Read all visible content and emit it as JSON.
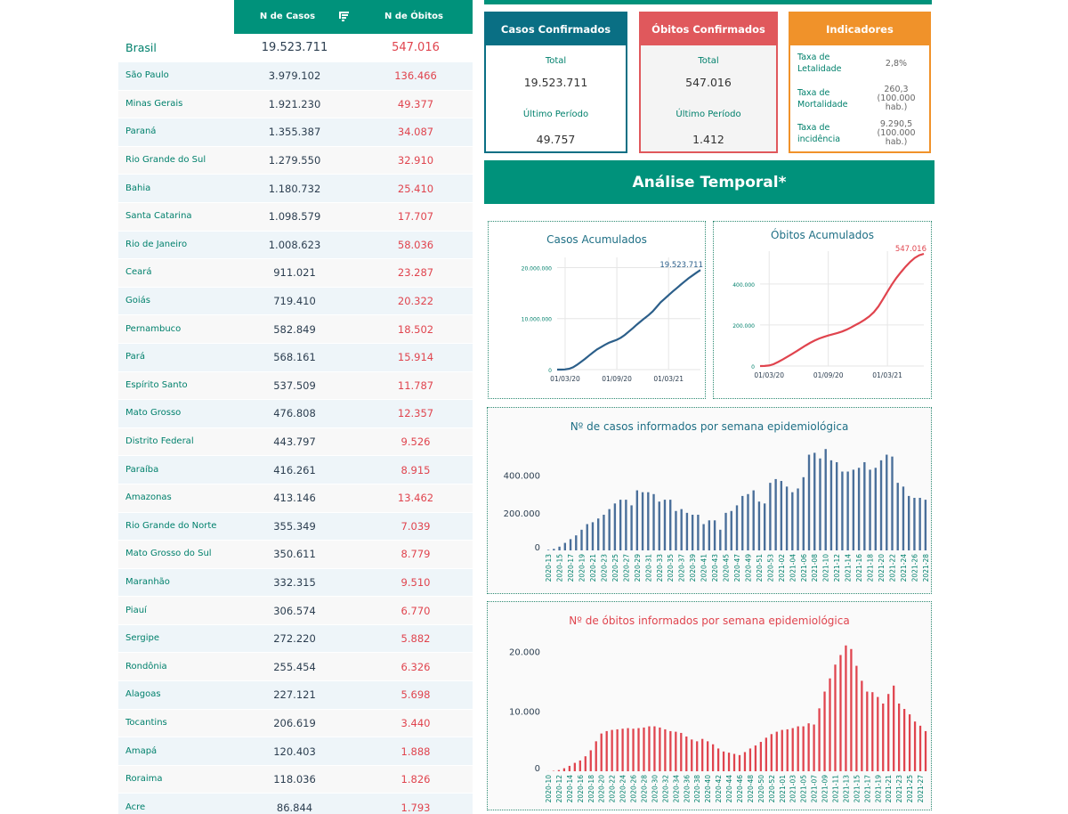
{
  "table": {
    "header_cases": "N de Casos",
    "header_deaths": "N de Óbitos",
    "rows": [
      {
        "state": "Brasil",
        "cases": "19.523.711",
        "deaths": "547.016"
      },
      {
        "state": "São Paulo",
        "cases": "3.979.102",
        "deaths": "136.466"
      },
      {
        "state": "Minas Gerais",
        "cases": "1.921.230",
        "deaths": "49.377"
      },
      {
        "state": "Paraná",
        "cases": "1.355.387",
        "deaths": "34.087"
      },
      {
        "state": "Rio Grande do Sul",
        "cases": "1.279.550",
        "deaths": "32.910"
      },
      {
        "state": "Bahia",
        "cases": "1.180.732",
        "deaths": "25.410"
      },
      {
        "state": "Santa Catarina",
        "cases": "1.098.579",
        "deaths": "17.707"
      },
      {
        "state": "Rio de Janeiro",
        "cases": "1.008.623",
        "deaths": "58.036"
      },
      {
        "state": "Ceará",
        "cases": "911.021",
        "deaths": "23.287"
      },
      {
        "state": "Goiás",
        "cases": "719.410",
        "deaths": "20.322"
      },
      {
        "state": "Pernambuco",
        "cases": "582.849",
        "deaths": "18.502"
      },
      {
        "state": "Pará",
        "cases": "568.161",
        "deaths": "15.914"
      },
      {
        "state": "Espírito Santo",
        "cases": "537.509",
        "deaths": "11.787"
      },
      {
        "state": "Mato Grosso",
        "cases": "476.808",
        "deaths": "12.357"
      },
      {
        "state": "Distrito Federal",
        "cases": "443.797",
        "deaths": "9.526"
      },
      {
        "state": "Paraíba",
        "cases": "416.261",
        "deaths": "8.915"
      },
      {
        "state": "Amazonas",
        "cases": "413.146",
        "deaths": "13.462"
      },
      {
        "state": "Rio Grande do Norte",
        "cases": "355.349",
        "deaths": "7.039"
      },
      {
        "state": "Mato Grosso do Sul",
        "cases": "350.611",
        "deaths": "8.779"
      },
      {
        "state": "Maranhão",
        "cases": "332.315",
        "deaths": "9.510"
      },
      {
        "state": "Piauí",
        "cases": "306.574",
        "deaths": "6.770"
      },
      {
        "state": "Sergipe",
        "cases": "272.220",
        "deaths": "5.882"
      },
      {
        "state": "Rondônia",
        "cases": "255.454",
        "deaths": "6.326"
      },
      {
        "state": "Alagoas",
        "cases": "227.121",
        "deaths": "5.698"
      },
      {
        "state": "Tocantins",
        "cases": "206.619",
        "deaths": "3.440"
      },
      {
        "state": "Amapá",
        "cases": "120.403",
        "deaths": "1.888"
      },
      {
        "state": "Roraima",
        "cases": "118.036",
        "deaths": "1.826"
      },
      {
        "state": "Acre",
        "cases": "86.844",
        "deaths": "1.793"
      }
    ]
  },
  "cards": {
    "confirmed": {
      "title": "Casos Confirmados",
      "total_label": "Total",
      "total": "19.523.711",
      "period_label": "Último Período",
      "period": "49.757"
    },
    "deaths": {
      "title": "Óbitos Confirmados",
      "total_label": "Total",
      "total": "547.016",
      "period_label": "Último Período",
      "period": "1.412"
    },
    "indicators": {
      "title": "Indicadores",
      "items": [
        {
          "label": "Taxa de Letalidade",
          "value": "2,8%"
        },
        {
          "label": "Taxa de Mortalidade",
          "value": "260,3 (100.000 hab.)"
        },
        {
          "label": "Taxa de incidência",
          "value": "9.290,5 (100.000 hab.)"
        }
      ]
    }
  },
  "banner": "Análise Temporal*",
  "colors": {
    "primary": "#00927b",
    "cases": "#2c5f8a",
    "deaths": "#e0444e",
    "indicators": "#f0922a"
  },
  "chart_data": [
    {
      "type": "line",
      "title": "Casos Acumulados",
      "x_ticks": [
        "01/03/20",
        "01/09/20",
        "01/03/21"
      ],
      "y_ticks": [
        "0",
        "10.000.000",
        "20.000.000"
      ],
      "ylim": [
        0,
        22000000
      ],
      "annotation": "19.523.711",
      "x": [
        0,
        2,
        4,
        6,
        8,
        10,
        12,
        14,
        16,
        18,
        20,
        22,
        24,
        26,
        28,
        30,
        32,
        34,
        36,
        38,
        40,
        42,
        44,
        46,
        48,
        50,
        52,
        54,
        56,
        58,
        60,
        62,
        64,
        66,
        68,
        70,
        72
      ],
      "values": [
        0,
        5000,
        30000,
        150000,
        450000,
        950000,
        1500000,
        2100000,
        2750000,
        3350000,
        3950000,
        4400000,
        4850000,
        5250000,
        5550000,
        5850000,
        6250000,
        6800000,
        7450000,
        8100000,
        8800000,
        9450000,
        10100000,
        10700000,
        11400000,
        12300000,
        13200000,
        13900000,
        14600000,
        15300000,
        15950000,
        16600000,
        17250000,
        17900000,
        18450000,
        19000000,
        19523711
      ]
    },
    {
      "type": "line",
      "title": "Óbitos Acumulados",
      "x_ticks": [
        "01/03/20",
        "01/09/20",
        "01/03/21"
      ],
      "y_ticks": [
        "0",
        "200.000",
        "400.000"
      ],
      "ylim": [
        0,
        560000
      ],
      "annotation": "547.016",
      "x": [
        0,
        2,
        4,
        6,
        8,
        10,
        12,
        14,
        16,
        18,
        20,
        22,
        24,
        26,
        28,
        30,
        32,
        34,
        36,
        38,
        40,
        42,
        44,
        46,
        48,
        50,
        52,
        54,
        56,
        58,
        60,
        62,
        64,
        66,
        68,
        70,
        72
      ],
      "values": [
        0,
        300,
        2500,
        9000,
        20000,
        32000,
        45000,
        58000,
        72000,
        86000,
        100000,
        113000,
        124000,
        134000,
        142000,
        149000,
        155000,
        161000,
        168000,
        177000,
        188000,
        200000,
        212000,
        226000,
        242000,
        262000,
        290000,
        325000,
        362000,
        398000,
        430000,
        458000,
        485000,
        508000,
        527000,
        540000,
        547016
      ]
    },
    {
      "type": "bar",
      "title": "Nº de casos informados por semana epidemiológica",
      "y_ticks": [
        "0",
        "200.000",
        "400.000"
      ],
      "ylim": [
        0,
        560000
      ],
      "categories": [
        "2020-13",
        "2020-14",
        "2020-15",
        "2020-16",
        "2020-17",
        "2020-18",
        "2020-19",
        "2020-20",
        "2020-21",
        "2020-22",
        "2020-23",
        "2020-24",
        "2020-25",
        "2020-26",
        "2020-27",
        "2020-28",
        "2020-29",
        "2020-30",
        "2020-31",
        "2020-32",
        "2020-33",
        "2020-34",
        "2020-35",
        "2020-36",
        "2020-37",
        "2020-38",
        "2020-39",
        "2020-40",
        "2020-41",
        "2020-42",
        "2020-43",
        "2020-44",
        "2020-45",
        "2020-46",
        "2020-47",
        "2020-48",
        "2020-49",
        "2020-50",
        "2020-51",
        "2020-52",
        "2020-53",
        "2021-01",
        "2021-02",
        "2021-03",
        "2021-04",
        "2021-05",
        "2021-06",
        "2021-07",
        "2021-08",
        "2021-09",
        "2021-10",
        "2021-11",
        "2021-12",
        "2021-13",
        "2021-14",
        "2021-15",
        "2021-16",
        "2021-17",
        "2021-18",
        "2021-19",
        "2021-20",
        "2021-21",
        "2021-22",
        "2021-23",
        "2021-24",
        "2021-25",
        "2021-26",
        "2021-27",
        "2021-28"
      ],
      "tick_labels": [
        "2020-13",
        "2020-15",
        "2020-17",
        "2020-19",
        "2020-21",
        "2020-23",
        "2020-25",
        "2020-27",
        "2020-29",
        "2020-31",
        "2020-33",
        "2020-35",
        "2020-37",
        "2020-39",
        "2020-41",
        "2020-43",
        "2020-45",
        "2020-47",
        "2020-49",
        "2020-51",
        "2020-53",
        "2021-02",
        "2021-04",
        "2021-06",
        "2021-08",
        "2021-10",
        "2021-12",
        "2021-14",
        "2021-16",
        "2021-18",
        "2021-20",
        "2021-22",
        "2021-24",
        "2021-26",
        "2021-28"
      ],
      "values": [
        3000,
        8000,
        20000,
        40000,
        60000,
        80000,
        110000,
        140000,
        150000,
        170000,
        190000,
        220000,
        250000,
        270000,
        270000,
        240000,
        320000,
        310000,
        310000,
        300000,
        260000,
        270000,
        270000,
        210000,
        220000,
        200000,
        190000,
        190000,
        140000,
        160000,
        160000,
        110000,
        200000,
        210000,
        240000,
        290000,
        300000,
        320000,
        260000,
        250000,
        360000,
        380000,
        370000,
        340000,
        310000,
        330000,
        390000,
        510000,
        520000,
        490000,
        540000,
        480000,
        470000,
        420000,
        420000,
        430000,
        440000,
        470000,
        430000,
        440000,
        480000,
        510000,
        500000,
        360000,
        340000,
        290000,
        280000,
        280000,
        270000
      ]
    },
    {
      "type": "bar",
      "title": "Nº de óbitos informados por semana epidemiológica",
      "y_ticks": [
        "0",
        "10.000",
        "20.000"
      ],
      "ylim": [
        0,
        22000
      ],
      "categories": [
        "2020-10",
        "2020-11",
        "2020-12",
        "2020-13",
        "2020-14",
        "2020-15",
        "2020-16",
        "2020-17",
        "2020-18",
        "2020-19",
        "2020-20",
        "2020-21",
        "2020-22",
        "2020-23",
        "2020-24",
        "2020-25",
        "2020-26",
        "2020-27",
        "2020-28",
        "2020-29",
        "2020-30",
        "2020-31",
        "2020-32",
        "2020-33",
        "2020-34",
        "2020-35",
        "2020-36",
        "2020-37",
        "2020-38",
        "2020-39",
        "2020-40",
        "2020-41",
        "2020-42",
        "2020-43",
        "2020-44",
        "2020-45",
        "2020-46",
        "2020-47",
        "2020-48",
        "2020-49",
        "2020-50",
        "2020-51",
        "2020-52",
        "2020-53",
        "2021-01",
        "2021-02",
        "2021-03",
        "2021-04",
        "2021-05",
        "2021-06",
        "2021-07",
        "2021-08",
        "2021-09",
        "2021-10",
        "2021-11",
        "2021-12",
        "2021-13",
        "2021-14",
        "2021-15",
        "2021-16",
        "2021-17",
        "2021-18",
        "2021-19",
        "2021-20",
        "2021-21",
        "2021-22",
        "2021-23",
        "2021-24",
        "2021-25",
        "2021-26",
        "2021-27",
        "2021-28"
      ],
      "tick_labels": [
        "2020-10",
        "2020-12",
        "2020-14",
        "2020-16",
        "2020-18",
        "2020-20",
        "2020-22",
        "2020-24",
        "2020-26",
        "2020-28",
        "2020-30",
        "2020-32",
        "2020-34",
        "2020-36",
        "2020-38",
        "2020-40",
        "2020-42",
        "2020-44",
        "2020-46",
        "2020-48",
        "2020-50",
        "2020-52",
        "2021-01",
        "2021-03",
        "2021-05",
        "2021-07",
        "2021-09",
        "2021-11",
        "2021-13",
        "2021-15",
        "2021-17",
        "2021-19",
        "2021-21",
        "2021-23",
        "2021-25",
        "2021-27"
      ],
      "values": [
        10,
        60,
        200,
        500,
        900,
        1400,
        1800,
        2500,
        3500,
        5000,
        6300,
        6700,
        6900,
        7000,
        7100,
        7200,
        7100,
        7200,
        7300,
        7500,
        7500,
        7300,
        7000,
        6700,
        6600,
        6400,
        5800,
        5300,
        5000,
        5400,
        5000,
        4500,
        3800,
        3300,
        3100,
        2900,
        2700,
        3200,
        3800,
        4300,
        4900,
        5600,
        6200,
        6600,
        6900,
        7000,
        7200,
        7500,
        7500,
        8000,
        7800,
        10500,
        13300,
        15500,
        17800,
        19400,
        21000,
        20400,
        17600,
        15100,
        13300,
        13200,
        12400,
        11300,
        12900,
        14300,
        11300,
        10400,
        9500,
        8300,
        7600,
        6700
      ]
    }
  ]
}
